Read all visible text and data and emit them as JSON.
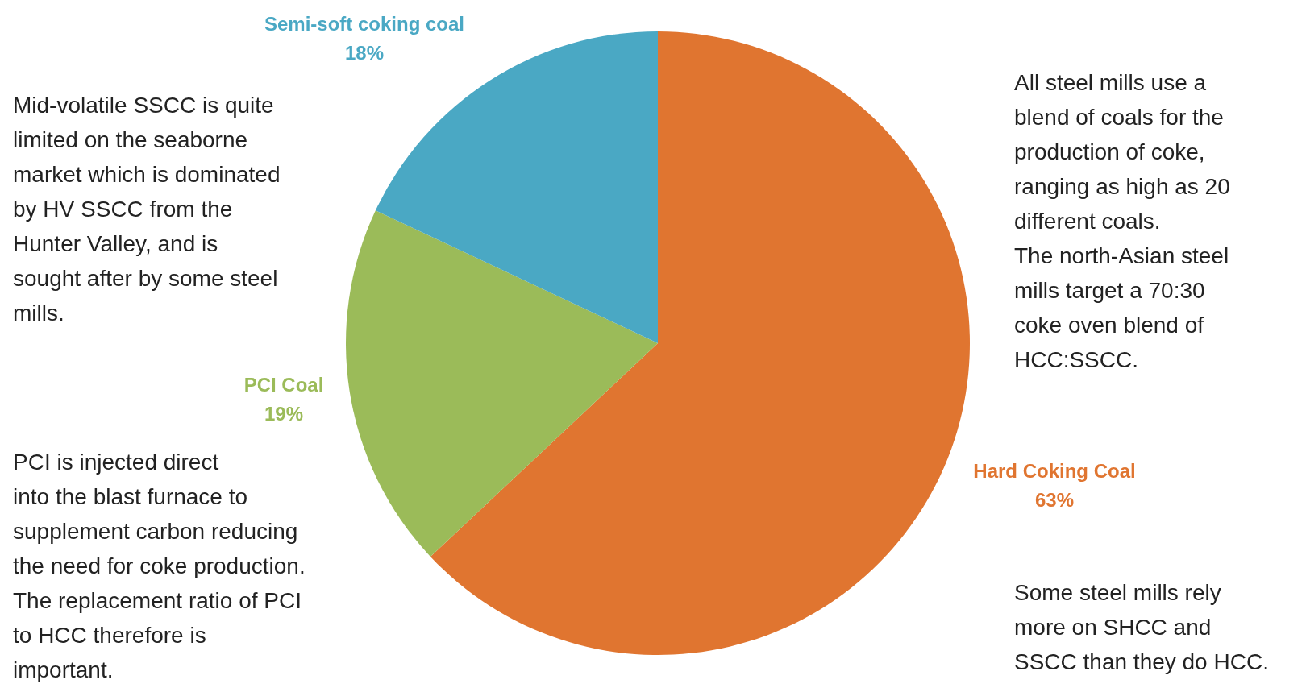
{
  "chart_data": {
    "type": "pie",
    "categories": [
      "Hard Coking Coal",
      "PCI Coal",
      "Semi-soft coking coal"
    ],
    "values": [
      63,
      19,
      18
    ],
    "colors": [
      "#e07530",
      "#9bbb59",
      "#4aa8c4"
    ],
    "value_labels": [
      "63%",
      "19%",
      "18%"
    ],
    "annotations": [
      "Mid-volatile SSCC is quite\nlimited on the seaborne\nmarket which is dominated\nby HV SSCC from the\nHunter Valley, and is\nsought after by some steel\nmills.",
      "PCI is injected direct\ninto the blast furnace to\nsupplement carbon reducing\nthe need for coke production.\nThe replacement ratio of PCI\nto HCC therefore is\nimportant.",
      "All steel mills use a\nblend of coals for the\nproduction of coke,\nranging as high as 20\ndifferent coals.\nThe north-Asian steel\nmills target a 70:30\ncoke oven blend of\nHCC:SSCC.",
      "Some steel mills rely\nmore on SHCC and\nSSCC than they do HCC."
    ]
  }
}
